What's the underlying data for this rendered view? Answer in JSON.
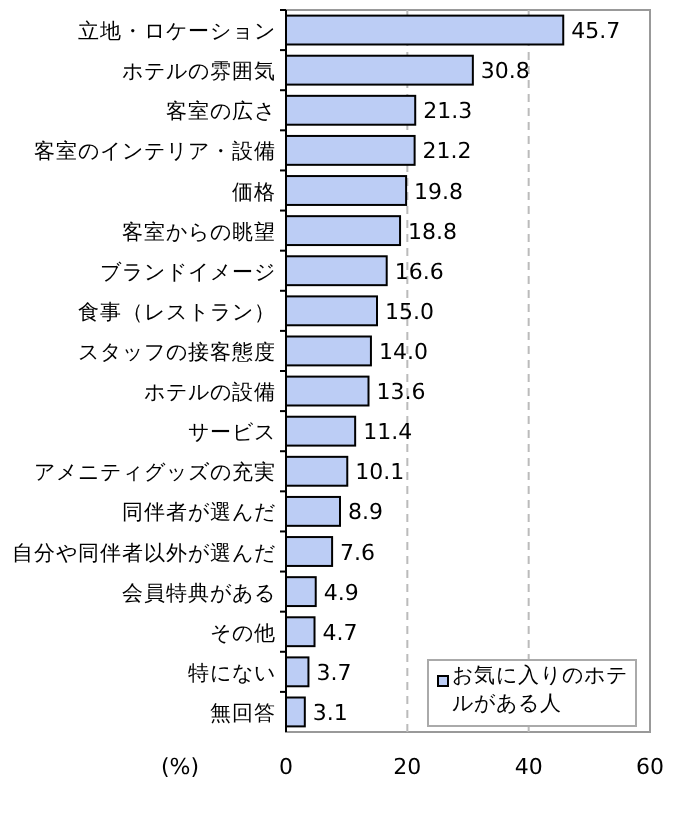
{
  "chart_data": {
    "type": "bar",
    "orientation": "horizontal",
    "xlabel": "(%)",
    "categories": [
      "立地・ロケーション",
      "ホテルの雰囲気",
      "客室の広さ",
      "客室のインテリア・設備",
      "価格",
      "客室からの眺望",
      "ブランドイメージ",
      "食事（レストラン）",
      "スタッフの接客態度",
      "ホテルの設備",
      "サービス",
      "アメニティグッズの充実",
      "同伴者が選んだ",
      "自分や同伴者以外が選んだ",
      "会員特典がある",
      "その他",
      "特にない",
      "無回答"
    ],
    "series": [
      {
        "name": "お気に入りのホテルがある人",
        "color": "#bccdf5",
        "values": [
          45.7,
          30.8,
          21.3,
          21.2,
          19.8,
          18.8,
          16.6,
          15.0,
          14.0,
          13.6,
          11.4,
          10.1,
          8.9,
          7.6,
          4.9,
          4.7,
          3.7,
          3.1
        ],
        "value_labels": [
          "45.7",
          "30.8",
          "21.3",
          "21.2",
          "19.8",
          "18.8",
          "16.6",
          "15.0",
          "14.0",
          "13.6",
          "11.4",
          "10.1",
          "8.9",
          "7.6",
          "4.9",
          "4.7",
          "3.7",
          "3.1"
        ]
      }
    ],
    "xlim": [
      0,
      60
    ],
    "xticks": [
      0,
      20,
      40,
      60
    ],
    "grid": "x",
    "legend": "bottom right"
  }
}
